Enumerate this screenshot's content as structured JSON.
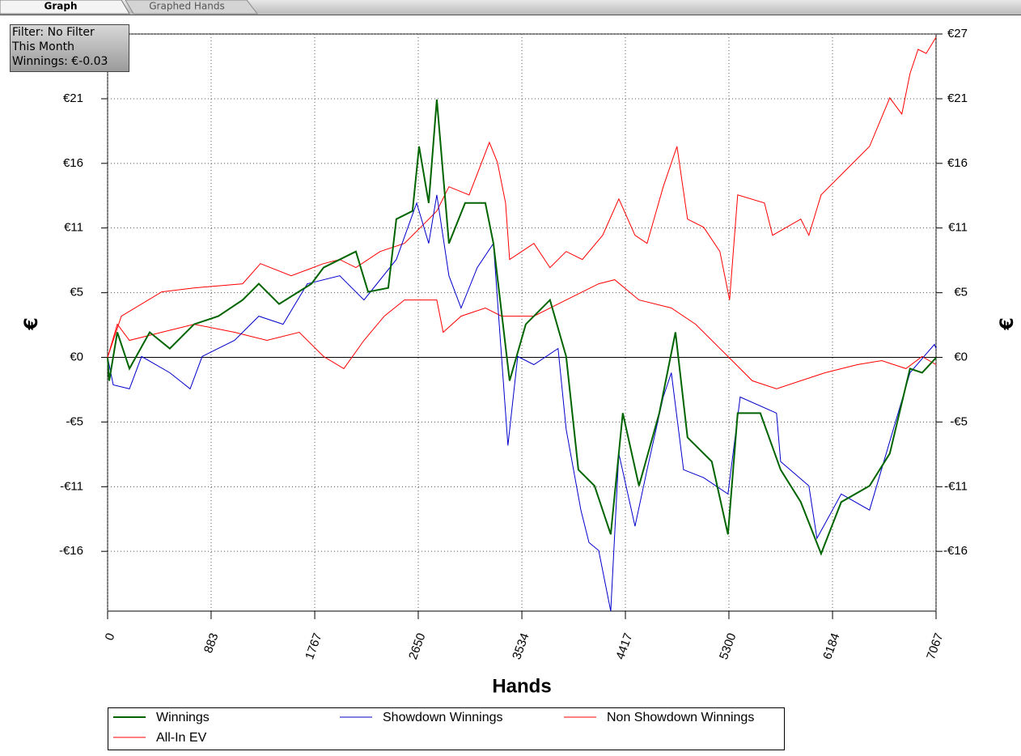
{
  "tabs": [
    "Graph",
    "Graphed Hands"
  ],
  "filter_box": [
    "Filter: No Filter",
    "This Month",
    "Winnings: €-0.03"
  ],
  "chart_data": {
    "type": "line",
    "xlabel": "Hands",
    "ylabel": "€",
    "y2label": "€",
    "xlim": [
      0,
      7067
    ],
    "ylim": [
      -20.93,
      26.67
    ],
    "xticks": [
      0,
      883,
      1767,
      2650,
      3534,
      4417,
      5300,
      6184,
      7067
    ],
    "yticks": [
      {
        "value": -16,
        "label": "-€16"
      },
      {
        "value": -10.67,
        "label": "-€11"
      },
      {
        "value": -5.33,
        "label": "-€5"
      },
      {
        "value": 0,
        "label": "€0"
      },
      {
        "value": 5.33,
        "label": "€5"
      },
      {
        "value": 10.67,
        "label": "€11"
      },
      {
        "value": 16,
        "label": "€16"
      },
      {
        "value": 21.33,
        "label": "€21"
      },
      {
        "value": 26.67,
        "label": "€27"
      }
    ],
    "grid": true,
    "series": [
      {
        "name": "Winnings",
        "color": "#006400",
        "x": [
          0,
          14,
          83,
          186,
          359,
          531,
          738,
          945,
          1152,
          1290,
          1463,
          1739,
          1842,
          2118,
          2222,
          2394,
          2463,
          2601,
          2657,
          2739,
          2808,
          2912,
          3050,
          3222,
          3291,
          3429,
          3567,
          3774,
          3912,
          4016,
          4154,
          4292,
          4395,
          4533,
          4706,
          4844,
          4947,
          5154,
          5292,
          5375,
          5568,
          5741,
          5913,
          6086,
          6258,
          6500,
          6672,
          6845,
          6948,
          7067
        ],
        "values": [
          0,
          -1.93,
          2.07,
          -0.93,
          2.07,
          0.73,
          2.73,
          3.4,
          4.73,
          6.07,
          4.4,
          6.07,
          7.4,
          8.73,
          5.4,
          5.73,
          11.4,
          12.07,
          17.4,
          12.73,
          21.27,
          9.4,
          12.73,
          12.73,
          9.4,
          -1.93,
          2.73,
          4.73,
          0.07,
          -9.27,
          -10.6,
          -14.6,
          -4.6,
          -10.6,
          -4.6,
          2.07,
          -6.6,
          -8.6,
          -14.6,
          -4.6,
          -4.6,
          -9.27,
          -11.93,
          -16.2,
          -11.93,
          -10.6,
          -7.93,
          -0.93,
          -1.27,
          -0.03
        ]
      },
      {
        "name": "Showdown Winnings",
        "color": "#0000cc",
        "x": [
          0,
          48,
          186,
          290,
          531,
          704,
          807,
          1083,
          1290,
          1497,
          1704,
          1980,
          2187,
          2463,
          2636,
          2739,
          2808,
          2912,
          3015,
          3153,
          3291,
          3415,
          3498,
          3636,
          3843,
          3912,
          4037,
          4106,
          4189,
          4292,
          4361,
          4499,
          4602,
          4740,
          4809,
          4913,
          5085,
          5292,
          5396,
          5706,
          5741,
          5982,
          6051,
          6258,
          6500,
          6672,
          6845,
          7053,
          7067
        ],
        "values": [
          0,
          -2.27,
          -2.6,
          0.07,
          -1.27,
          -2.6,
          0.07,
          1.4,
          3.4,
          2.73,
          6.07,
          6.73,
          4.73,
          8.07,
          12.73,
          9.4,
          13.4,
          6.73,
          4.07,
          7.4,
          9.4,
          -7.27,
          0.07,
          -0.6,
          0.73,
          -5.93,
          -12.6,
          -15.27,
          -15.93,
          -20.93,
          -7.93,
          -13.93,
          -9.27,
          -3.27,
          -1.27,
          -9.27,
          -9.93,
          -11.27,
          -3.27,
          -4.6,
          -8.6,
          -10.6,
          -14.93,
          -11.27,
          -12.6,
          -6.93,
          -1.27,
          1.07,
          0.73
        ]
      },
      {
        "name": "Non Showdown Winnings",
        "color": "#ff0000",
        "x": [
          0,
          83,
          186,
          462,
          738,
          1083,
          1359,
          1635,
          1842,
          2015,
          2187,
          2360,
          2532,
          2808,
          2863,
          3015,
          3222,
          3360,
          3636,
          3912,
          4189,
          4326,
          4533,
          4809,
          5016,
          5154,
          5292,
          5499,
          5706,
          5913,
          6120,
          6396,
          6603,
          6810,
          6948,
          7067
        ],
        "values": [
          0,
          2.73,
          1.4,
          2.07,
          2.73,
          2.07,
          1.4,
          2.07,
          0.07,
          -0.93,
          1.4,
          3.4,
          4.73,
          4.73,
          2.07,
          3.4,
          4.07,
          3.4,
          3.4,
          4.73,
          6.07,
          6.4,
          4.73,
          4.07,
          2.73,
          1.4,
          0.07,
          -1.93,
          -2.6,
          -1.93,
          -1.27,
          -0.6,
          -0.27,
          -0.93,
          0.07,
          -0.6
        ]
      },
      {
        "name": "All-In EV",
        "color": "#ff0000",
        "x": [
          0,
          117,
          462,
          738,
          1152,
          1304,
          1566,
          1842,
          1980,
          2118,
          2325,
          2532,
          2670,
          2808,
          2912,
          3084,
          3257,
          3326,
          3395,
          3429,
          3636,
          3774,
          3912,
          4050,
          4223,
          4361,
          4499,
          4602,
          4740,
          4857,
          4947,
          5085,
          5223,
          5306,
          5375,
          5603,
          5672,
          5913,
          5982,
          6086,
          6327,
          6500,
          6672,
          6775,
          6845,
          6914,
          6983,
          7067
        ],
        "values": [
          0,
          3.4,
          5.4,
          5.73,
          6.07,
          7.73,
          6.73,
          7.73,
          8.07,
          7.4,
          8.73,
          9.4,
          10.73,
          12.07,
          14.07,
          13.4,
          17.73,
          16.07,
          12.73,
          8.07,
          9.4,
          7.4,
          8.73,
          8.07,
          10.07,
          13.07,
          10.07,
          9.4,
          14.07,
          17.4,
          11.4,
          10.73,
          8.73,
          4.73,
          13.4,
          12.73,
          10.07,
          11.4,
          10.07,
          13.4,
          15.73,
          17.4,
          21.4,
          20.07,
          23.4,
          25.4,
          25.07,
          26.4
        ]
      }
    ]
  }
}
